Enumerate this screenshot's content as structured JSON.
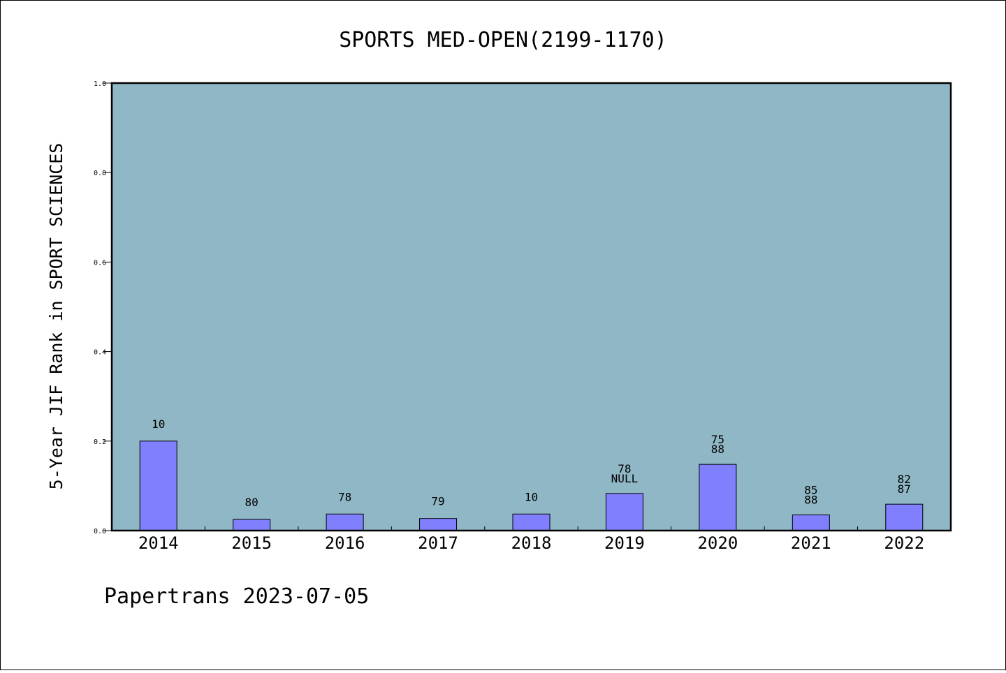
{
  "chart_data": {
    "type": "bar",
    "title": "SPORTS MED-OPEN(2199-1170)",
    "xlabel": "",
    "ylabel": "5-Year JIF Rank in SPORT SCIENCES",
    "categories": [
      "2014",
      "2015",
      "2016",
      "2017",
      "2018",
      "2019",
      "2020",
      "2021",
      "2022"
    ],
    "values": [
      0.2,
      0.025,
      0.037,
      0.027,
      0.037,
      0.083,
      0.148,
      0.035,
      0.059
    ],
    "bar_labels": [
      [
        "10"
      ],
      [
        "80"
      ],
      [
        "78"
      ],
      [
        "79"
      ],
      [
        "10"
      ],
      [
        "78",
        "NULL"
      ],
      [
        "75",
        "88"
      ],
      [
        "85",
        "88"
      ],
      [
        "82",
        "87"
      ]
    ],
    "ylim": [
      0,
      1.0
    ],
    "yticks": [
      "0.0",
      "0.2",
      "0.4",
      "0.6",
      "0.8",
      "1.0"
    ],
    "grid": false,
    "colors": {
      "plot_background": "#8fb7c5",
      "bar_fill": "#8080ff",
      "bar_stroke": "#000000"
    }
  },
  "footer": "Papertrans 2023-07-05"
}
